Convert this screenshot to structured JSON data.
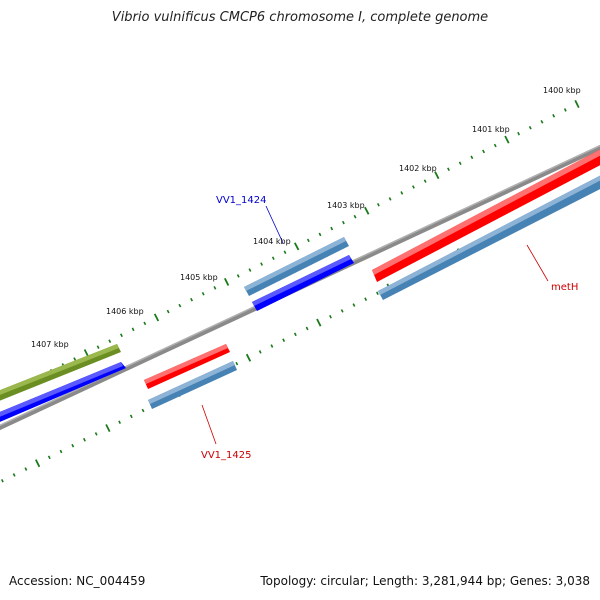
{
  "title": "Vibrio vulnificus CMCP6 chromosome I, complete genome",
  "accession": "Accession: NC_004459",
  "summary": "Topology: circular; Length: 3,281,944 bp; Genes: 3,038",
  "colors": {
    "backbone": "#8a8a8a",
    "cds_red": "#ff0000",
    "gene_steelblue": "#4682b4",
    "cds_blue": "#0000ff",
    "cds_olive": "#6b8e23",
    "ticks": "#1a7a1a",
    "label_red": "#cc0000",
    "label_blue": "#0000cc"
  },
  "ruler": {
    "unit": "kbp",
    "major_labels": [
      "1400 kbp",
      "1401 kbp",
      "1402 kbp",
      "1403 kbp",
      "1404 kbp",
      "1405 kbp",
      "1406 kbp",
      "1407 kbp"
    ]
  },
  "features": [
    {
      "track": "olive",
      "color": "cds_olive"
    },
    {
      "track": "blue_left",
      "color": "cds_blue"
    },
    {
      "track": "red_small",
      "color": "cds_red",
      "label": "VV1_1425"
    },
    {
      "track": "steel_small",
      "color": "gene_steelblue"
    },
    {
      "track": "steel_mid",
      "color": "gene_steelblue",
      "label": "VV1_1424"
    },
    {
      "track": "blue_mid",
      "color": "cds_blue"
    },
    {
      "track": "red_right",
      "color": "cds_red",
      "label": "metH"
    },
    {
      "track": "steel_right",
      "color": "gene_steelblue"
    }
  ]
}
